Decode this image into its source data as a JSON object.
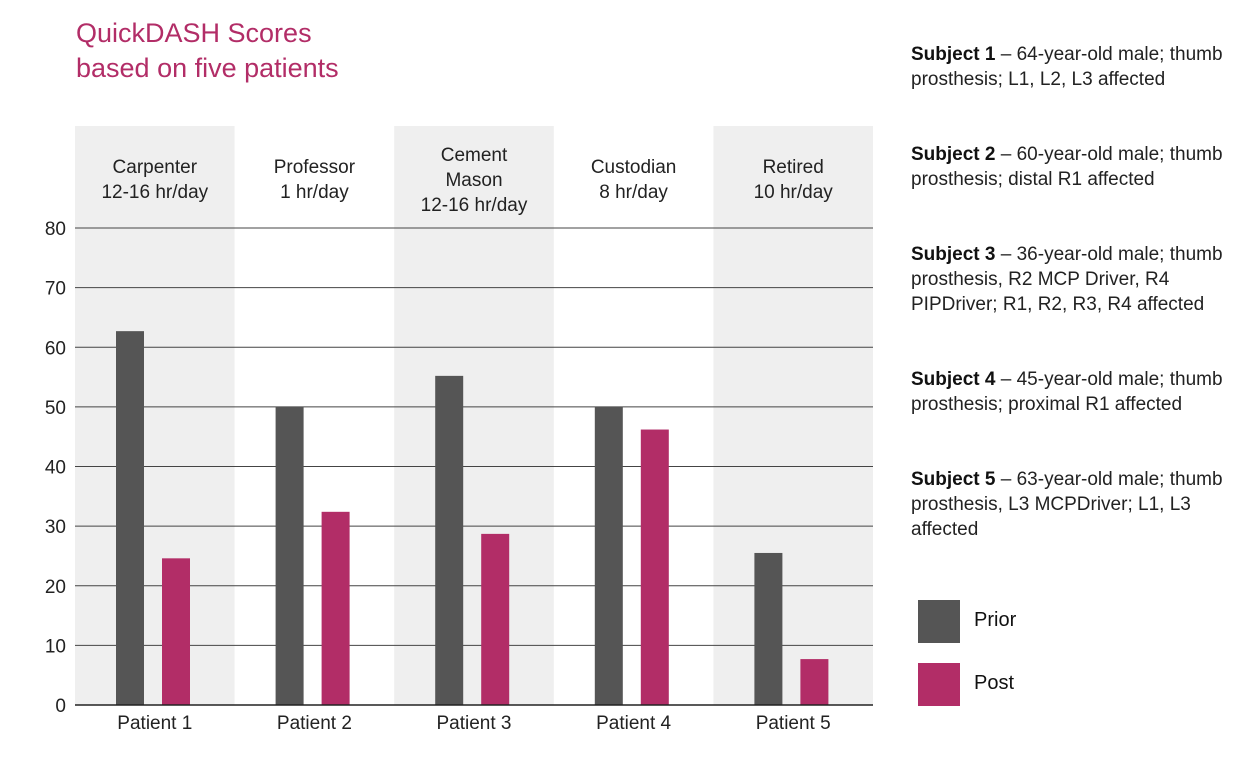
{
  "title_lines": [
    "QuickDASH Scores",
    "based on five patients"
  ],
  "colors": {
    "title": "#b22d67",
    "prior": "#555555",
    "post": "#b22d67",
    "band": "#efefef"
  },
  "chart_data": {
    "type": "bar",
    "title": "QuickDASH Scores based on five patients",
    "categories": [
      "Patient 1",
      "Patient 2",
      "Patient 3",
      "Patient 4",
      "Patient 5"
    ],
    "occupations": [
      [
        "Carpenter",
        "12-16 hr/day"
      ],
      [
        "Professor",
        "1 hr/day"
      ],
      [
        "Cement",
        "Mason",
        "12-16 hr/day"
      ],
      [
        "Custodian",
        "8 hr/day"
      ],
      [
        "Retired",
        "10 hr/day"
      ]
    ],
    "series": [
      {
        "name": "Prior",
        "values": [
          62.7,
          50,
          55.2,
          50,
          25.5
        ]
      },
      {
        "name": "Post",
        "values": [
          24.6,
          32.4,
          28.7,
          46.2,
          7.7
        ]
      }
    ],
    "yticks": [
      0,
      10,
      20,
      30,
      40,
      50,
      60,
      70,
      80
    ],
    "ylim": [
      0,
      80
    ],
    "xlabel": "",
    "ylabel": "",
    "grid": true,
    "legend_position": "right"
  },
  "subjects": [
    {
      "label": "Subject 1",
      "text": " – 64-year-old male; thumb prosthesis; L1, L2, L3 affected"
    },
    {
      "label": "Subject 2",
      "text": " – 60-year-old male; thumb prosthesis; distal R1 affected"
    },
    {
      "label": "Subject 3",
      "text": " – 36-year-old male; thumb prosthesis, R2 MCP Driver, R4 PIPDriver; R1, R2, R3, R4 affected"
    },
    {
      "label": "Subject 4",
      "text": " – 45-year-old male; thumb prosthesis; proximal R1 affected"
    },
    {
      "label": "Subject 5",
      "text": " – 63-year-old male; thumb prosthesis, L3 MCPDriver; L1, L3 affected"
    }
  ],
  "legend": [
    {
      "label": "Prior",
      "color": "#555555"
    },
    {
      "label": "Post",
      "color": "#b22d67"
    }
  ]
}
